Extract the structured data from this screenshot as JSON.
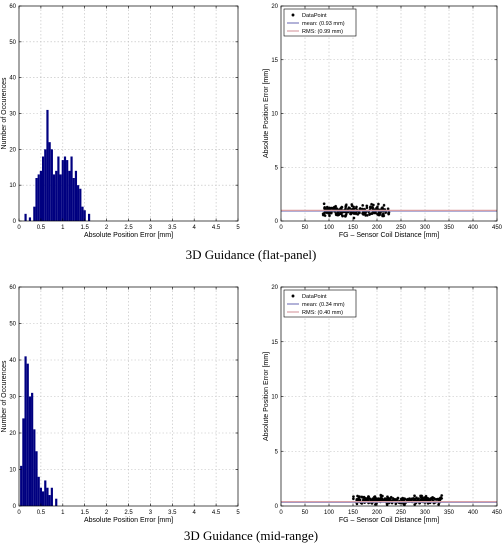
{
  "captions": [
    "3D Guidance (flat-panel)",
    "3D Guidance (mid-range)"
  ],
  "colors": {
    "bar": "#000080",
    "mean_line": "#7f7fbf",
    "rms_line": "#d9a0a6",
    "point": "#000000",
    "grid": "#bdbdbd"
  },
  "chart_data": [
    {
      "type": "bar",
      "panel": "top-left",
      "xlabel": "Absolute Position Error [mm]",
      "ylabel": "Number of Occurences",
      "xlim": [
        0,
        5
      ],
      "ylim": [
        0,
        60
      ],
      "xticks": [
        "0",
        "0.5",
        "1",
        "1.5",
        "2",
        "2.5",
        "3",
        "3.5",
        "4",
        "4.5",
        "5"
      ],
      "yticks": [
        "0",
        "10",
        "20",
        "30",
        "40",
        "50",
        "60"
      ],
      "grid": true,
      "bin_width": 0.05,
      "bins": [
        {
          "x": 0.15,
          "y": 2
        },
        {
          "x": 0.25,
          "y": 1
        },
        {
          "x": 0.35,
          "y": 4
        },
        {
          "x": 0.4,
          "y": 12
        },
        {
          "x": 0.45,
          "y": 13
        },
        {
          "x": 0.5,
          "y": 14
        },
        {
          "x": 0.55,
          "y": 18
        },
        {
          "x": 0.6,
          "y": 20
        },
        {
          "x": 0.65,
          "y": 31
        },
        {
          "x": 0.7,
          "y": 22
        },
        {
          "x": 0.75,
          "y": 20
        },
        {
          "x": 0.8,
          "y": 13
        },
        {
          "x": 0.85,
          "y": 14
        },
        {
          "x": 0.9,
          "y": 18
        },
        {
          "x": 0.95,
          "y": 13
        },
        {
          "x": 1.0,
          "y": 17
        },
        {
          "x": 1.05,
          "y": 18
        },
        {
          "x": 1.1,
          "y": 17
        },
        {
          "x": 1.15,
          "y": 14
        },
        {
          "x": 1.2,
          "y": 18
        },
        {
          "x": 1.25,
          "y": 12
        },
        {
          "x": 1.3,
          "y": 14
        },
        {
          "x": 1.35,
          "y": 10
        },
        {
          "x": 1.4,
          "y": 9
        },
        {
          "x": 1.45,
          "y": 4
        },
        {
          "x": 1.5,
          "y": 3
        },
        {
          "x": 1.6,
          "y": 2
        }
      ]
    },
    {
      "type": "scatter",
      "panel": "top-right",
      "xlabel": "FG – Sensor Coil Distance [mm]",
      "ylabel": "Absolute Position Error [mm]",
      "xlim": [
        0,
        450
      ],
      "ylim": [
        0,
        20
      ],
      "xticks": [
        "0",
        "50",
        "100",
        "150",
        "200",
        "250",
        "300",
        "350",
        "400",
        "450"
      ],
      "yticks": [
        "0",
        "5",
        "10",
        "15",
        "20"
      ],
      "grid": true,
      "legend": {
        "position": "top-left",
        "entries": [
          "DataPoint",
          "mean: (0.93 mm)",
          "RMS: (0.99 mm)"
        ]
      },
      "mean": 0.93,
      "rms": 0.99,
      "cloud": {
        "x_range": [
          85,
          225
        ],
        "y_range": [
          0.2,
          1.7
        ],
        "count": 200
      }
    },
    {
      "type": "bar",
      "panel": "bottom-left",
      "xlabel": "Absolute Position Error [mm]",
      "ylabel": "Number of Occurences",
      "xlim": [
        0,
        5
      ],
      "ylim": [
        0,
        60
      ],
      "xticks": [
        "0",
        "0.5",
        "1",
        "1.5",
        "2",
        "2.5",
        "3",
        "3.5",
        "4",
        "4.5",
        "5"
      ],
      "yticks": [
        "0",
        "10",
        "20",
        "30",
        "40",
        "50",
        "60"
      ],
      "grid": true,
      "bin_width": 0.05,
      "bins": [
        {
          "x": 0.05,
          "y": 11
        },
        {
          "x": 0.1,
          "y": 24
        },
        {
          "x": 0.15,
          "y": 41
        },
        {
          "x": 0.2,
          "y": 39
        },
        {
          "x": 0.25,
          "y": 30
        },
        {
          "x": 0.3,
          "y": 31
        },
        {
          "x": 0.35,
          "y": 21
        },
        {
          "x": 0.4,
          "y": 15
        },
        {
          "x": 0.45,
          "y": 8
        },
        {
          "x": 0.5,
          "y": 5
        },
        {
          "x": 0.55,
          "y": 4
        },
        {
          "x": 0.6,
          "y": 7
        },
        {
          "x": 0.65,
          "y": 5
        },
        {
          "x": 0.7,
          "y": 3
        },
        {
          "x": 0.75,
          "y": 5
        },
        {
          "x": 0.85,
          "y": 2
        }
      ]
    },
    {
      "type": "scatter",
      "panel": "bottom-right",
      "xlabel": "FG – Sensor Coil Distance [mm]",
      "ylabel": "Absolute Position Error [mm]",
      "xlim": [
        0,
        450
      ],
      "ylim": [
        0,
        20
      ],
      "xticks": [
        "0",
        "50",
        "100",
        "150",
        "200",
        "250",
        "300",
        "350",
        "400",
        "450"
      ],
      "yticks": [
        "0",
        "5",
        "10",
        "15",
        "20"
      ],
      "grid": true,
      "legend": {
        "position": "top-left",
        "entries": [
          "DataPoint",
          "mean: (0.34 mm)",
          "RMS: (0.40 mm)"
        ]
      },
      "mean": 0.34,
      "rms": 0.4,
      "cloud": {
        "x_range": [
          150,
          335
        ],
        "y_range": [
          0.0,
          1.1
        ],
        "count": 260
      }
    }
  ]
}
